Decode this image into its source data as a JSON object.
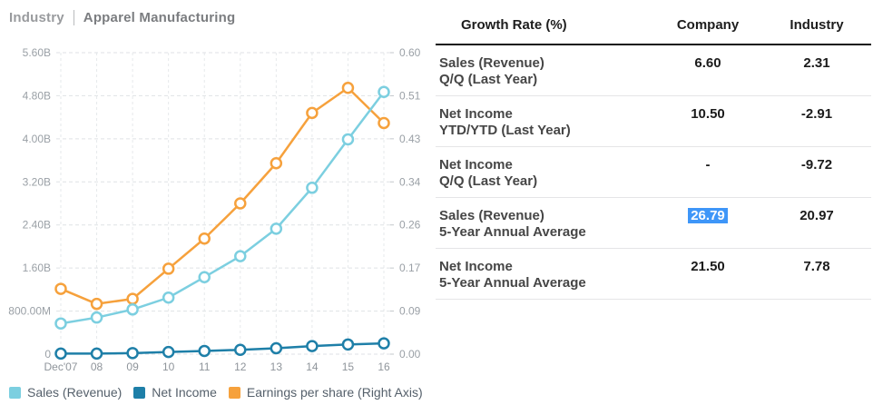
{
  "title": {
    "scope": "Industry",
    "sector": "Apparel Manufacturing"
  },
  "chart_data": {
    "type": "line",
    "x": [
      "Dec'07",
      "08",
      "09",
      "10",
      "11",
      "12",
      "13",
      "14",
      "15",
      "16"
    ],
    "left_axis": {
      "ticks": [
        "0",
        "800.00M",
        "1.60B",
        "2.40B",
        "3.20B",
        "4.00B",
        "4.80B",
        "5.60B"
      ],
      "min": 0,
      "max": 5.6,
      "unit": "USD"
    },
    "right_axis": {
      "ticks": [
        "0.00",
        "0.09",
        "0.17",
        "0.26",
        "0.34",
        "0.43",
        "0.51",
        "0.60"
      ],
      "min": 0,
      "max": 0.6
    },
    "series": [
      {
        "name": "Sales (Revenue)",
        "axis": "left",
        "color": "#7CCFE0",
        "values": [
          0.57,
          0.68,
          0.83,
          1.05,
          1.43,
          1.82,
          2.33,
          3.09,
          3.99,
          4.87
        ]
      },
      {
        "name": "Net Income",
        "axis": "left",
        "color": "#1E7FA8",
        "values": [
          0.01,
          0.01,
          0.02,
          0.04,
          0.06,
          0.08,
          0.11,
          0.15,
          0.18,
          0.2
        ]
      },
      {
        "name": "Earnings per share (Right Axis)",
        "axis": "right",
        "color": "#F6A13C",
        "values": [
          0.13,
          0.1,
          0.11,
          0.17,
          0.23,
          0.3,
          0.38,
          0.48,
          0.53,
          0.46
        ]
      }
    ],
    "grid": true,
    "legend_position": "bottom"
  },
  "table": {
    "header": {
      "metric": "Growth Rate (%)",
      "company": "Company",
      "industry": "Industry"
    },
    "rows": [
      {
        "metric_line1": "Sales (Revenue)",
        "metric_line2": "Q/Q (Last Year)",
        "company": "6.60",
        "industry": "2.31",
        "company_highlighted": false
      },
      {
        "metric_line1": "Net Income",
        "metric_line2": "YTD/YTD (Last Year)",
        "company": "10.50",
        "industry": "-2.91",
        "company_highlighted": false
      },
      {
        "metric_line1": "Net Income",
        "metric_line2": "Q/Q (Last Year)",
        "company": "-",
        "industry": "-9.72",
        "company_highlighted": false
      },
      {
        "metric_line1": "Sales (Revenue)",
        "metric_line2": "5-Year Annual Average",
        "company": "26.79",
        "industry": "20.97",
        "company_highlighted": true
      },
      {
        "metric_line1": "Net Income",
        "metric_line2": "5-Year Annual Average",
        "company": "21.50",
        "industry": "7.78",
        "company_highlighted": false
      }
    ]
  },
  "colors": {
    "selection_bg": "#3E96F8",
    "grid_line": "#dfe2e5",
    "axis_text": "#9aa0a6",
    "legend_text": "#55606b"
  }
}
